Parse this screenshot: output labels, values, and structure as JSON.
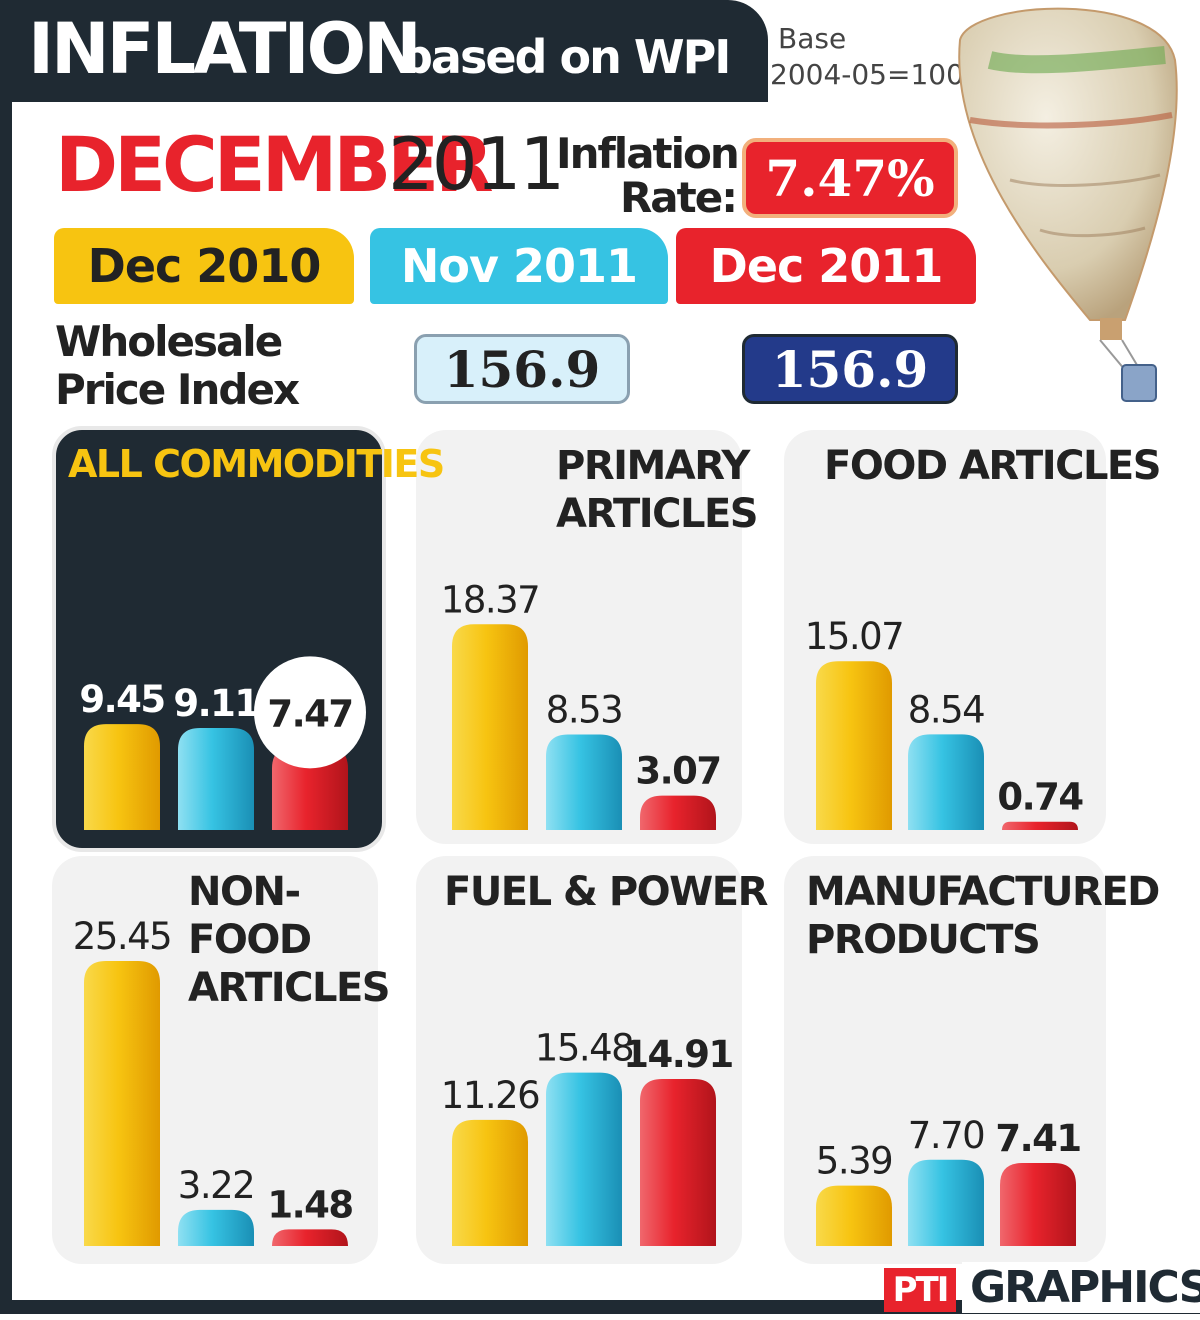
{
  "header": {
    "title_main": "INFLATION",
    "title_sub": "based on WPI",
    "base_line1": "Base",
    "base_line2": "2004-05=100",
    "month": "DECEMBER",
    "year": "2011",
    "rate_label_line1": "Inflation",
    "rate_label_line2": "Rate:",
    "rate_value": "7.47%"
  },
  "periods": [
    "Dec 2010",
    "Nov 2011",
    "Dec 2011"
  ],
  "wpi": {
    "label_line1": "Wholesale",
    "label_line2": "Price Index",
    "nov_2011": "156.9",
    "dec_2011": "156.9"
  },
  "footer": {
    "brand_mark": "PTI",
    "brand_text": "GRAPHICS"
  },
  "colors": {
    "dec_2010": "#f7c411",
    "nov_2011": "#36c3e3",
    "dec_2011": "#e8232c",
    "dark": "#1f2a33",
    "highlight_text": "#f7c411"
  },
  "chart_data": [
    {
      "type": "bar",
      "title": "ALL COMMODITIES",
      "categories": [
        "Dec 2010",
        "Nov 2011",
        "Dec 2011"
      ],
      "values": [
        9.45,
        9.11,
        7.47
      ],
      "labels": [
        "9.45",
        "9.11",
        "7.47"
      ]
    },
    {
      "type": "bar",
      "title": "PRIMARY ARTICLES",
      "categories": [
        "Dec 2010",
        "Nov 2011",
        "Dec 2011"
      ],
      "values": [
        18.37,
        8.53,
        3.07
      ],
      "labels": [
        "18.37",
        "8.53",
        "3.07"
      ]
    },
    {
      "type": "bar",
      "title": "FOOD ARTICLES",
      "categories": [
        "Dec 2010",
        "Nov 2011",
        "Dec 2011"
      ],
      "values": [
        15.07,
        8.54,
        0.74
      ],
      "labels": [
        "15.07",
        "8.54",
        "0.74"
      ]
    },
    {
      "type": "bar",
      "title": "NON-FOOD ARTICLES",
      "categories": [
        "Dec 2010",
        "Nov 2011",
        "Dec 2011"
      ],
      "values": [
        25.45,
        3.22,
        1.48
      ],
      "labels": [
        "25.45",
        "3.22",
        "1.48"
      ]
    },
    {
      "type": "bar",
      "title": "FUEL & POWER",
      "categories": [
        "Dec 2010",
        "Nov 2011",
        "Dec 2011"
      ],
      "values": [
        11.26,
        15.48,
        14.91
      ],
      "labels": [
        "11.26",
        "15.48",
        "14.91"
      ]
    },
    {
      "type": "bar",
      "title": "MANUFACTURED PRODUCTS",
      "categories": [
        "Dec 2010",
        "Nov 2011",
        "Dec 2011"
      ],
      "values": [
        5.39,
        7.7,
        7.41
      ],
      "labels": [
        "5.39",
        "7.70",
        "7.41"
      ]
    }
  ]
}
